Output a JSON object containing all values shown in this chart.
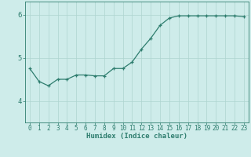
{
  "xlabel": "Humidex (Indice chaleur)",
  "ylabel": "",
  "x_values": [
    0,
    1,
    2,
    3,
    4,
    5,
    6,
    7,
    8,
    9,
    10,
    11,
    12,
    13,
    14,
    15,
    16,
    17,
    18,
    19,
    20,
    21,
    22,
    23
  ],
  "y_values": [
    4.75,
    4.45,
    4.35,
    4.5,
    4.5,
    4.6,
    4.6,
    4.58,
    4.58,
    4.75,
    4.75,
    4.9,
    5.2,
    5.45,
    5.75,
    5.92,
    5.97,
    5.97,
    5.97,
    5.97,
    5.97,
    5.97,
    5.97,
    5.95
  ],
  "line_color": "#2e7d6e",
  "marker": "+",
  "marker_size": 3,
  "bg_color": "#ceecea",
  "grid_color": "#aed4d0",
  "axis_color": "#2e7d6e",
  "ylim": [
    3.5,
    6.3
  ],
  "xlim": [
    -0.5,
    23.5
  ],
  "yticks": [
    4,
    5,
    6
  ],
  "xtick_labels": [
    "0",
    "1",
    "2",
    "3",
    "4",
    "5",
    "6",
    "7",
    "8",
    "9",
    "10",
    "11",
    "12",
    "13",
    "14",
    "15",
    "16",
    "17",
    "18",
    "19",
    "20",
    "21",
    "22",
    "23"
  ],
  "tick_fontsize": 5.5,
  "xlabel_fontsize": 6.5
}
